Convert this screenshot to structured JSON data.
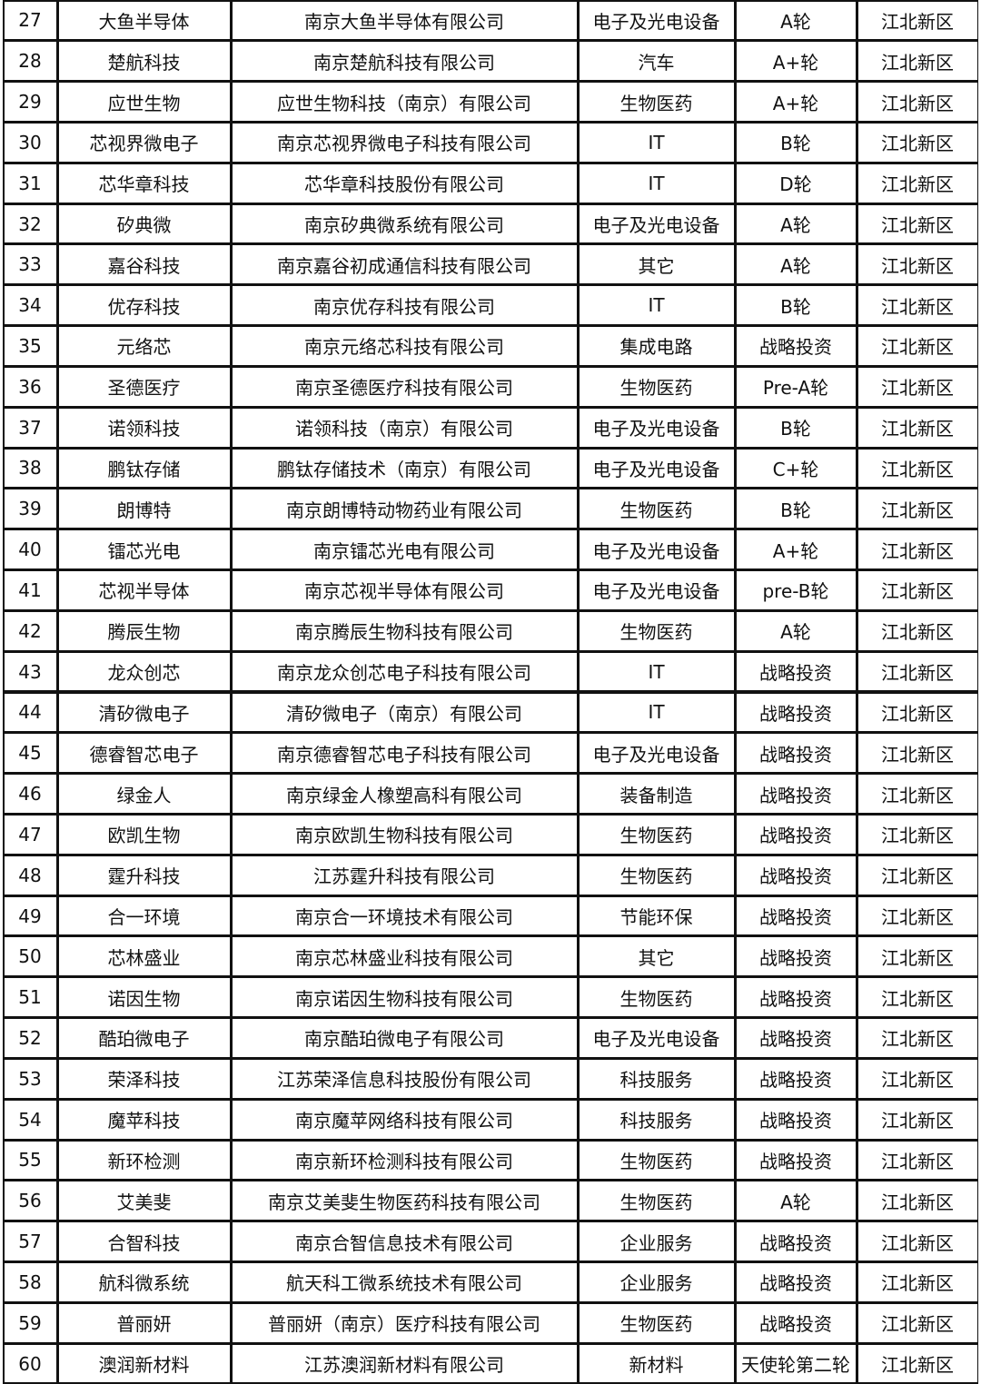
{
  "table": {
    "rows": [
      [
        27,
        "大鱼半导体",
        "南京大鱼半导体有限公司",
        "电子及光电设备",
        "A轮",
        "江北新区"
      ],
      [
        28,
        "楚航科技",
        "南京楚航科技有限公司",
        "汽车",
        "A+轮",
        "江北新区"
      ],
      [
        29,
        "应世生物",
        "应世生物科技（南京）有限公司",
        "生物医药",
        "A+轮",
        "江北新区"
      ],
      [
        30,
        "芯视界微电子",
        "南京芯视界微电子科技有限公司",
        "IT",
        "B轮",
        "江北新区"
      ],
      [
        31,
        "芯华章科技",
        "芯华章科技股份有限公司",
        "IT",
        "D轮",
        "江北新区"
      ],
      [
        32,
        "矽典微",
        "南京矽典微系统有限公司",
        "电子及光电设备",
        "A轮",
        "江北新区"
      ],
      [
        33,
        "嘉谷科技",
        "南京嘉谷初成通信科技有限公司",
        "其它",
        "A轮",
        "江北新区"
      ],
      [
        34,
        "优存科技",
        "南京优存科技有限公司",
        "IT",
        "B轮",
        "江北新区"
      ],
      [
        35,
        "元络芯",
        "南京元络芯科技有限公司",
        "集成电路",
        "战略投资",
        "江北新区"
      ],
      [
        36,
        "圣德医疗",
        "南京圣德医疗科技有限公司",
        "生物医药",
        "Pre-A轮",
        "江北新区"
      ],
      [
        37,
        "诺领科技",
        "诺领科技（南京）有限公司",
        "电子及光电设备",
        "B轮",
        "江北新区"
      ],
      [
        38,
        "鹏钛存储",
        "鹏钛存储技术（南京）有限公司",
        "电子及光电设备",
        "C+轮",
        "江北新区"
      ],
      [
        39,
        "朗博特",
        "南京朗博特动物药业有限公司",
        "生物医药",
        "B轮",
        "江北新区"
      ],
      [
        40,
        "镭芯光电",
        "南京镭芯光电有限公司",
        "电子及光电设备",
        "A+轮",
        "江北新区"
      ],
      [
        41,
        "芯视半导体",
        "南京芯视半导体有限公司",
        "电子及光电设备",
        "pre-B轮",
        "江北新区"
      ],
      [
        42,
        "腾辰生物",
        "南京腾辰生物科技有限公司",
        "生物医药",
        "A轮",
        "江北新区"
      ],
      [
        43,
        "龙众创芯",
        "南京龙众创芯电子科技有限公司",
        "IT",
        "战略投资",
        "江北新区"
      ],
      [
        44,
        "清矽微电子",
        "清矽微电子（南京）有限公司",
        "IT",
        "战略投资",
        "江北新区"
      ],
      [
        45,
        "德睿智芯电子",
        "南京德睿智芯电子科技有限公司",
        "电子及光电设备",
        "战略投资",
        "江北新区"
      ],
      [
        46,
        "绿金人",
        "南京绿金人橡塑高科有限公司",
        "装备制造",
        "战略投资",
        "江北新区"
      ],
      [
        47,
        "欧凯生物",
        "南京欧凯生物科技有限公司",
        "生物医药",
        "战略投资",
        "江北新区"
      ],
      [
        48,
        "霆升科技",
        "江苏霆升科技有限公司",
        "生物医药",
        "战略投资",
        "江北新区"
      ],
      [
        49,
        "合一环境",
        "南京合一环境技术有限公司",
        "节能环保",
        "战略投资",
        "江北新区"
      ],
      [
        50,
        "芯林盛业",
        "南京芯林盛业科技有限公司",
        "其它",
        "战略投资",
        "江北新区"
      ],
      [
        51,
        "诺因生物",
        "南京诺因生物科技有限公司",
        "生物医药",
        "战略投资",
        "江北新区"
      ],
      [
        52,
        "酷珀微电子",
        "南京酷珀微电子有限公司",
        "电子及光电设备",
        "战略投资",
        "江北新区"
      ],
      [
        53,
        "荣泽科技",
        "江苏荣泽信息科技股份有限公司",
        "科技服务",
        "战略投资",
        "江北新区"
      ],
      [
        54,
        "魔苹科技",
        "南京魔苹网络科技有限公司",
        "科技服务",
        "战略投资",
        "江北新区"
      ],
      [
        55,
        "新环检测",
        "南京新环检测科技有限公司",
        "生物医药",
        "战略投资",
        "江北新区"
      ],
      [
        56,
        "艾美斐",
        "南京艾美斐生物医药科技有限公司",
        "生物医药",
        "A轮",
        "江北新区"
      ],
      [
        57,
        "合智科技",
        "南京合智信息技术有限公司",
        "企业服务",
        "战略投资",
        "江北新区"
      ],
      [
        58,
        "航科微系统",
        "航天科工微系统技术有限公司",
        "企业服务",
        "战略投资",
        "江北新区"
      ],
      [
        59,
        "普丽妍",
        "普丽妍（南京）医疗科技有限公司",
        "生物医药",
        "战略投资",
        "江北新区"
      ],
      [
        60,
        "澳润新材料",
        "江苏澳润新材料有限公司",
        "新材料",
        "天使轮第二轮",
        "江北新区"
      ]
    ]
  }
}
